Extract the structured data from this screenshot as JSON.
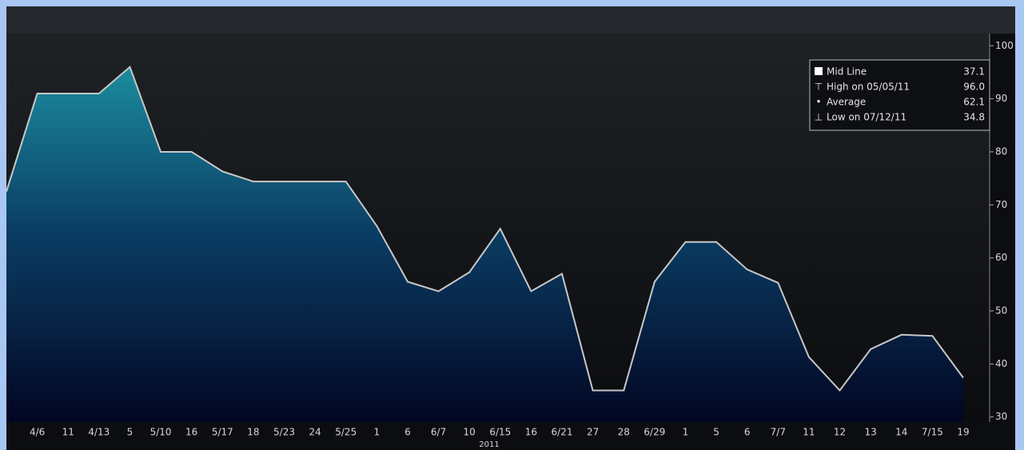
{
  "chart_data": {
    "type": "area",
    "categories": [
      null,
      "4/6",
      "11",
      "4/13",
      "5",
      "5/10",
      "16",
      "5/17",
      "18",
      "5/23",
      "24",
      "5/25",
      "1",
      "6",
      "6/7",
      "10",
      "6/15",
      "16",
      "6/21",
      "27",
      "28",
      "6/29",
      "1",
      "5",
      "6",
      "7/7",
      "11",
      "12",
      "13",
      "14",
      "7/15",
      "19"
    ],
    "series": [
      {
        "color": "#c8c8c8",
        "values": [
          72.5,
          91,
          91,
          91,
          96,
          80,
          80,
          76.3,
          74.4,
          74.4,
          74.4,
          74.4,
          66,
          55.5,
          53.7,
          57.3,
          65.5,
          53.7,
          57,
          35,
          35,
          55.5,
          63,
          63,
          57.8,
          55.3,
          41.3,
          35,
          42.8,
          45.5,
          45.3,
          37.4
        ]
      }
    ],
    "xlabel": "2011",
    "ylim": [
      29.5,
      102.3
    ],
    "yticks": [
      30,
      40,
      50,
      60,
      70,
      80,
      90,
      100
    ],
    "legend": {
      "labels": [
        "Mid Line",
        "High on 05/05/11",
        "Average",
        "Low on 07/12/11"
      ],
      "values": [
        37.1,
        96,
        62.1,
        34.8
      ],
      "value_labels": [
        "37.1",
        "96.0",
        "62.1",
        "34.8"
      ]
    }
  }
}
